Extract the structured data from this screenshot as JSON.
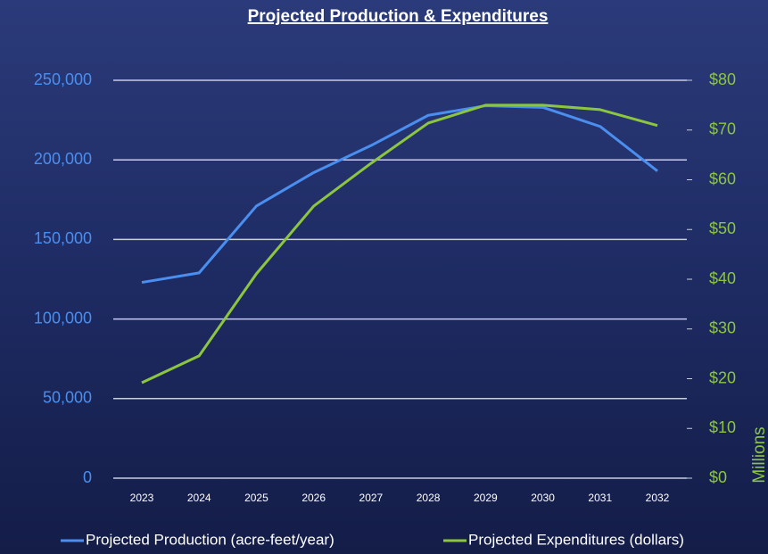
{
  "chart_data": {
    "type": "line",
    "title": "Projected Production & Expenditures",
    "y2_label": "Millions",
    "categories": [
      "2023",
      "2024",
      "2025",
      "2026",
      "2027",
      "2028",
      "2029",
      "2030",
      "2031",
      "2032"
    ],
    "series": [
      {
        "name": "Projected Production (acre-feet/year)",
        "color": "#4a8ff0",
        "axis": "y",
        "values": [
          123000,
          129000,
          171000,
          192000,
          209000,
          228000,
          234000,
          233000,
          221000,
          193000
        ]
      },
      {
        "name": "Projected Expenditures (dollars)",
        "color": "#8cc63f",
        "axis": "y2",
        "values": [
          19.2,
          24.6,
          41.1,
          54.7,
          63.3,
          71.4,
          75.0,
          75.0,
          74.1,
          70.9
        ]
      }
    ],
    "ylim": [
      0,
      250000
    ],
    "yticks": [
      0,
      {
        "value": 50000,
        "label": "50,000"
      },
      {
        "value": 100000,
        "label": "100,000"
      },
      {
        "value": 150000,
        "label": "150,000"
      },
      {
        "value": 200000,
        "label": "200,000"
      },
      {
        "value": 250000,
        "label": "250,000"
      }
    ],
    "y2lim": [
      0,
      80
    ],
    "y2ticks": [
      {
        "value": 0,
        "label": "$0"
      },
      {
        "value": 10,
        "label": "$10"
      },
      {
        "value": 20,
        "label": "$20"
      },
      {
        "value": 30,
        "label": "$30"
      },
      {
        "value": 40,
        "label": "$40"
      },
      {
        "value": 50,
        "label": "$50"
      },
      {
        "value": 60,
        "label": "$60"
      },
      {
        "value": 70,
        "label": "$70"
      },
      {
        "value": 80,
        "label": "$80"
      }
    ],
    "grid": true,
    "legend": "bottom"
  }
}
